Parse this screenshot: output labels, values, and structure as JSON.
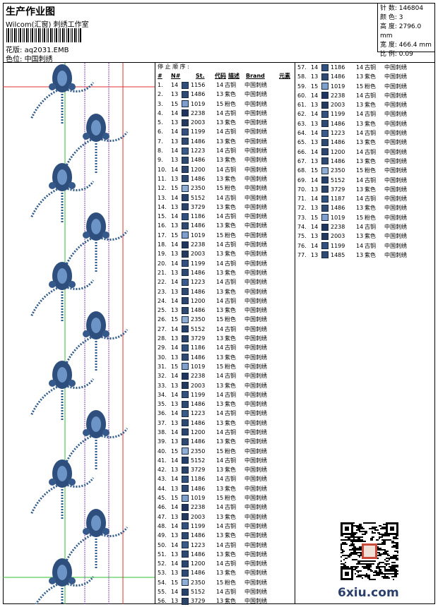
{
  "header": {
    "title": "生产作业图",
    "company": "Wilcom(汇窗) 刺绣工作室",
    "pattern_label": "花版:",
    "pattern_value": "aq2031.EMB",
    "colorpos_label": "色位:",
    "colorpos_value": "中国刺绣"
  },
  "info": {
    "stitches": "针 数: 146804",
    "colors": "颜 色: 3",
    "height": "高 度: 2796.0 mm",
    "width": "宽 度: 466.4 mm",
    "scale": "比 例: 0.09"
  },
  "table": {
    "stop_order_label": "停 止 顺 序 :",
    "headers": {
      "idx": "#",
      "n": "N#",
      "st": "St.",
      "code": "代码",
      "desc": "描述",
      "brand": "Brand",
      "elem": "元素"
    },
    "colors": {
      "1156": "#2f4f7a",
      "1486": "#2e4a72",
      "1019": "#7fa0cc",
      "2238": "#1f3560",
      "2003": "#23395d",
      "1199": "#34507f",
      "1223": "#3a5a89",
      "1200": "#2c4670",
      "2350": "#8faed6",
      "5152": "#24406b",
      "3729": "#2b4369",
      "1186": "#30507e",
      "1187": "#30507e",
      "1485": "#2e4a72"
    },
    "rows": [
      [
        "1.",
        "14",
        "1156",
        "14",
        "古铜",
        "中国刺绣"
      ],
      [
        "2.",
        "13",
        "1486",
        "13",
        "紫色",
        "中国刺绣"
      ],
      [
        "3.",
        "15",
        "1019",
        "15",
        "粉色",
        "中国刺绣"
      ],
      [
        "4.",
        "14",
        "2238",
        "14",
        "古铜",
        "中国刺绣"
      ],
      [
        "5.",
        "13",
        "2003",
        "13",
        "紫色",
        "中国刺绣"
      ],
      [
        "6.",
        "14",
        "1199",
        "14",
        "古铜",
        "中国刺绣"
      ],
      [
        "7.",
        "13",
        "1486",
        "13",
        "紫色",
        "中国刺绣"
      ],
      [
        "8.",
        "14",
        "1223",
        "14",
        "古铜",
        "中国刺绣"
      ],
      [
        "9.",
        "13",
        "1486",
        "13",
        "紫色",
        "中国刺绣"
      ],
      [
        "10.",
        "14",
        "1200",
        "14",
        "古铜",
        "中国刺绣"
      ],
      [
        "11.",
        "13",
        "1486",
        "13",
        "紫色",
        "中国刺绣"
      ],
      [
        "12.",
        "15",
        "2350",
        "15",
        "粉色",
        "中国刺绣"
      ],
      [
        "13.",
        "14",
        "5152",
        "14",
        "古铜",
        "中国刺绣"
      ],
      [
        "14.",
        "13",
        "3729",
        "13",
        "紫色",
        "中国刺绣"
      ],
      [
        "15.",
        "14",
        "1186",
        "14",
        "古铜",
        "中国刺绣"
      ],
      [
        "16.",
        "13",
        "1486",
        "13",
        "紫色",
        "中国刺绣"
      ],
      [
        "17.",
        "15",
        "1019",
        "15",
        "粉色",
        "中国刺绣"
      ],
      [
        "18.",
        "14",
        "2238",
        "14",
        "古铜",
        "中国刺绣"
      ],
      [
        "19.",
        "13",
        "2003",
        "13",
        "紫色",
        "中国刺绣"
      ],
      [
        "20.",
        "14",
        "1199",
        "14",
        "古铜",
        "中国刺绣"
      ],
      [
        "21.",
        "13",
        "1486",
        "13",
        "紫色",
        "中国刺绣"
      ],
      [
        "22.",
        "14",
        "1223",
        "14",
        "古铜",
        "中国刺绣"
      ],
      [
        "23.",
        "13",
        "1486",
        "13",
        "紫色",
        "中国刺绣"
      ],
      [
        "24.",
        "14",
        "1200",
        "14",
        "古铜",
        "中国刺绣"
      ],
      [
        "25.",
        "13",
        "1486",
        "13",
        "紫色",
        "中国刺绣"
      ],
      [
        "26.",
        "15",
        "2350",
        "15",
        "粉色",
        "中国刺绣"
      ],
      [
        "27.",
        "14",
        "5152",
        "14",
        "古铜",
        "中国刺绣"
      ],
      [
        "28.",
        "13",
        "3729",
        "13",
        "紫色",
        "中国刺绣"
      ],
      [
        "29.",
        "14",
        "1186",
        "14",
        "古铜",
        "中国刺绣"
      ],
      [
        "30.",
        "13",
        "1486",
        "13",
        "紫色",
        "中国刺绣"
      ],
      [
        "31.",
        "15",
        "1019",
        "15",
        "粉色",
        "中国刺绣"
      ],
      [
        "32.",
        "14",
        "2238",
        "14",
        "古铜",
        "中国刺绣"
      ],
      [
        "33.",
        "13",
        "2003",
        "13",
        "紫色",
        "中国刺绣"
      ],
      [
        "34.",
        "14",
        "1199",
        "14",
        "古铜",
        "中国刺绣"
      ],
      [
        "35.",
        "13",
        "1486",
        "13",
        "紫色",
        "中国刺绣"
      ],
      [
        "36.",
        "14",
        "1223",
        "14",
        "古铜",
        "中国刺绣"
      ],
      [
        "37.",
        "13",
        "1486",
        "13",
        "紫色",
        "中国刺绣"
      ],
      [
        "38.",
        "14",
        "1200",
        "14",
        "古铜",
        "中国刺绣"
      ],
      [
        "39.",
        "13",
        "1486",
        "13",
        "紫色",
        "中国刺绣"
      ],
      [
        "40.",
        "15",
        "2350",
        "15",
        "粉色",
        "中国刺绣"
      ],
      [
        "41.",
        "14",
        "5152",
        "14",
        "古铜",
        "中国刺绣"
      ],
      [
        "42.",
        "13",
        "3729",
        "13",
        "紫色",
        "中国刺绣"
      ],
      [
        "43.",
        "14",
        "1186",
        "14",
        "古铜",
        "中国刺绣"
      ],
      [
        "44.",
        "13",
        "1486",
        "13",
        "紫色",
        "中国刺绣"
      ],
      [
        "45.",
        "15",
        "1019",
        "15",
        "粉色",
        "中国刺绣"
      ],
      [
        "46.",
        "14",
        "2238",
        "14",
        "古铜",
        "中国刺绣"
      ],
      [
        "47.",
        "13",
        "2003",
        "13",
        "紫色",
        "中国刺绣"
      ],
      [
        "48.",
        "14",
        "1199",
        "14",
        "古铜",
        "中国刺绣"
      ],
      [
        "49.",
        "13",
        "1486",
        "13",
        "紫色",
        "中国刺绣"
      ],
      [
        "50.",
        "14",
        "1223",
        "14",
        "古铜",
        "中国刺绣"
      ],
      [
        "51.",
        "13",
        "1486",
        "13",
        "紫色",
        "中国刺绣"
      ],
      [
        "52.",
        "14",
        "1200",
        "14",
        "古铜",
        "中国刺绣"
      ],
      [
        "53.",
        "13",
        "1486",
        "13",
        "紫色",
        "中国刺绣"
      ],
      [
        "54.",
        "15",
        "2350",
        "15",
        "粉色",
        "中国刺绣"
      ],
      [
        "55.",
        "14",
        "5152",
        "14",
        "古铜",
        "中国刺绣"
      ],
      [
        "56.",
        "13",
        "3729",
        "13",
        "紫色",
        "中国刺绣"
      ],
      [
        "57.",
        "14",
        "1186",
        "14",
        "古铜",
        "中国刺绣"
      ],
      [
        "58.",
        "13",
        "1486",
        "13",
        "紫色",
        "中国刺绣"
      ],
      [
        "59.",
        "15",
        "1019",
        "15",
        "粉色",
        "中国刺绣"
      ],
      [
        "60.",
        "14",
        "2238",
        "14",
        "古铜",
        "中国刺绣"
      ],
      [
        "61.",
        "13",
        "2003",
        "13",
        "紫色",
        "中国刺绣"
      ],
      [
        "62.",
        "14",
        "1199",
        "14",
        "古铜",
        "中国刺绣"
      ],
      [
        "63.",
        "13",
        "1486",
        "13",
        "紫色",
        "中国刺绣"
      ],
      [
        "64.",
        "14",
        "1223",
        "14",
        "古铜",
        "中国刺绣"
      ],
      [
        "65.",
        "13",
        "1486",
        "13",
        "紫色",
        "中国刺绣"
      ],
      [
        "66.",
        "14",
        "1200",
        "14",
        "古铜",
        "中国刺绣"
      ],
      [
        "67.",
        "13",
        "1486",
        "13",
        "紫色",
        "中国刺绣"
      ],
      [
        "68.",
        "15",
        "2350",
        "15",
        "粉色",
        "中国刺绣"
      ],
      [
        "69.",
        "14",
        "5152",
        "14",
        "古铜",
        "中国刺绣"
      ],
      [
        "70.",
        "13",
        "3729",
        "13",
        "紫色",
        "中国刺绣"
      ],
      [
        "71.",
        "14",
        "1187",
        "14",
        "古铜",
        "中国刺绣"
      ],
      [
        "72.",
        "13",
        "1486",
        "13",
        "紫色",
        "中国刺绣"
      ],
      [
        "73.",
        "15",
        "1019",
        "15",
        "粉色",
        "中国刺绣"
      ],
      [
        "74.",
        "14",
        "2238",
        "14",
        "古铜",
        "中国刺绣"
      ],
      [
        "75.",
        "13",
        "2003",
        "13",
        "紫色",
        "中国刺绣"
      ],
      [
        "76.",
        "14",
        "1199",
        "14",
        "古铜",
        "中国刺绣"
      ],
      [
        "77.",
        "13",
        "1485",
        "13",
        "紫色",
        "中国刺绣"
      ]
    ]
  },
  "watermark": {
    "logo_text": "6xiu.com"
  },
  "icons": {
    "qr": "qr-code-icon",
    "barcode": "barcode-icon",
    "motif": "floral-motif-icon"
  }
}
